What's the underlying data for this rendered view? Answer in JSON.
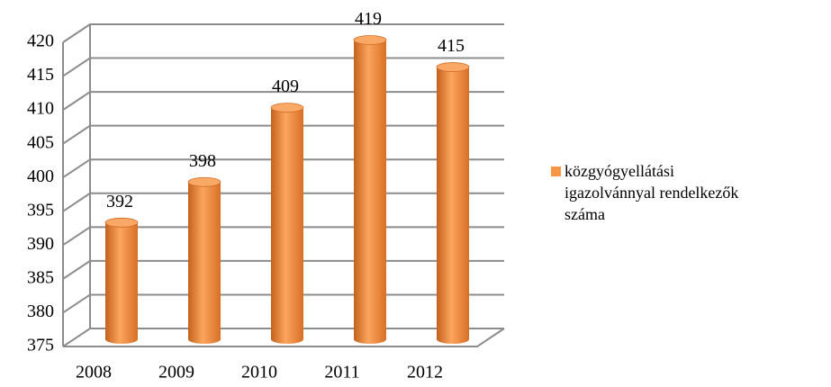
{
  "chart_data": {
    "type": "bar3d",
    "categories": [
      "2008",
      "2009",
      "2010",
      "2011",
      "2012"
    ],
    "series": [
      {
        "name": "közgyógyellátási igazolvánnyal rendelkezők száma",
        "color": "#f79646",
        "values": [
          392,
          398,
          409,
          419,
          415
        ]
      }
    ],
    "ylim": [
      375,
      420
    ],
    "yticks": [
      375,
      380,
      385,
      390,
      395,
      400,
      405,
      410,
      415,
      420
    ],
    "grid": true,
    "legend": "right"
  }
}
